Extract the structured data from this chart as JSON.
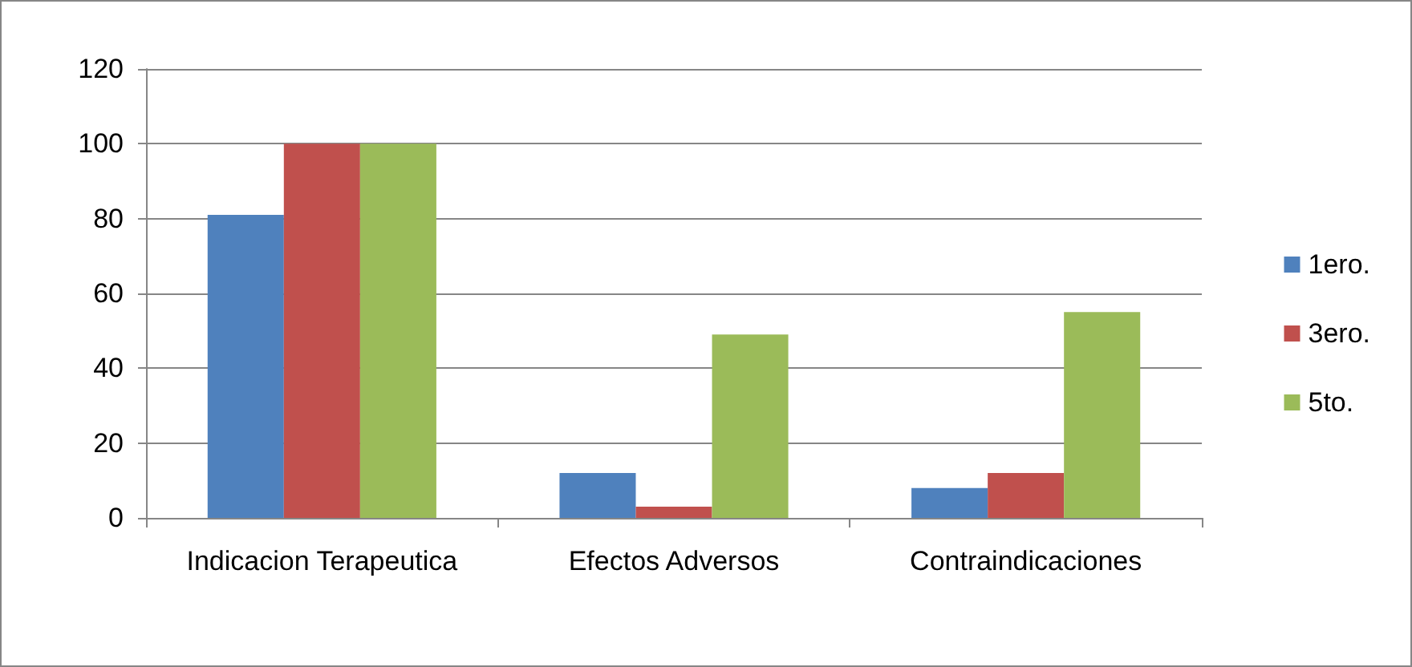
{
  "chart_data": {
    "type": "bar",
    "categories": [
      "Indicacion Terapeutica",
      "Efectos Adversos",
      "Contraindicaciones"
    ],
    "series": [
      {
        "name": "1ero.",
        "color": "#4f81bd",
        "values": [
          81,
          12,
          8
        ]
      },
      {
        "name": "3ero.",
        "color": "#c0504d",
        "values": [
          100,
          3,
          12
        ]
      },
      {
        "name": "5to.",
        "color": "#9bbb59",
        "values": [
          100,
          49,
          55
        ]
      }
    ],
    "ylim": [
      0,
      120
    ],
    "yticks": [
      0,
      20,
      40,
      60,
      80,
      100,
      120
    ],
    "grid": "y",
    "legend": "right"
  }
}
